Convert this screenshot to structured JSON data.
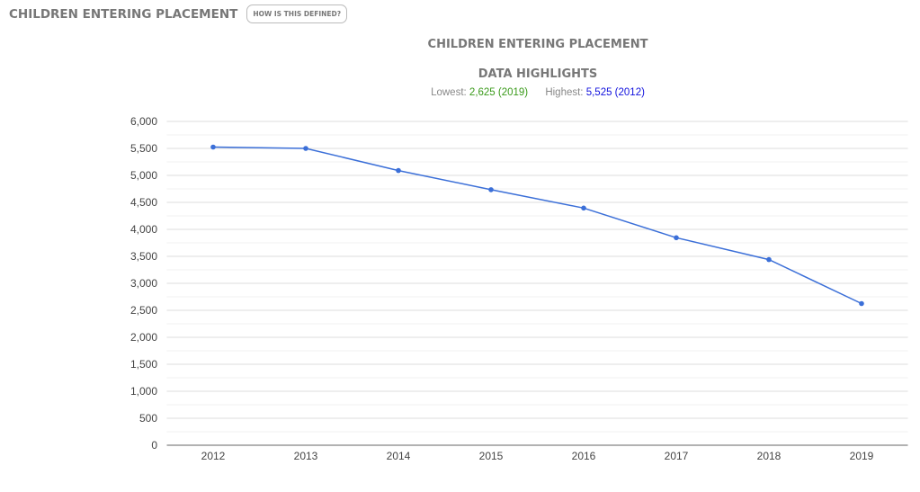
{
  "header": {
    "title": "CHILDREN ENTERING PLACEMENT",
    "how_label": "HOW IS THIS DEFINED?"
  },
  "highlights": {
    "title": "DATA HIGHLIGHTS",
    "lowest_label": "Lowest:",
    "lowest_value": "2,625 (2019)",
    "highest_label": "Highest:",
    "highest_value": "5,525 (2012)"
  },
  "colors": {
    "line": "#3b6fd8",
    "lowest": "#3a9a1a",
    "highest": "#1010dd"
  },
  "chart_data": {
    "type": "line",
    "title": "CHILDREN ENTERING PLACEMENT",
    "categories": [
      "2012",
      "2013",
      "2014",
      "2015",
      "2016",
      "2017",
      "2018",
      "2019"
    ],
    "series": [
      {
        "name": "Children entering placement",
        "values": [
          5525,
          5500,
          5090,
          4735,
          4395,
          3845,
          3440,
          2625
        ]
      }
    ],
    "ylim": [
      0,
      6000
    ],
    "yticks": [
      0,
      500,
      1000,
      1500,
      2000,
      2500,
      3000,
      3500,
      4000,
      4500,
      5000,
      5500,
      6000
    ],
    "ytick_labels": [
      "0",
      "500",
      "1,000",
      "1,500",
      "2,000",
      "2,500",
      "3,000",
      "3,500",
      "4,000",
      "4,500",
      "5,000",
      "5,500",
      "6,000"
    ],
    "grid": true,
    "xlabel": "",
    "ylabel": ""
  }
}
